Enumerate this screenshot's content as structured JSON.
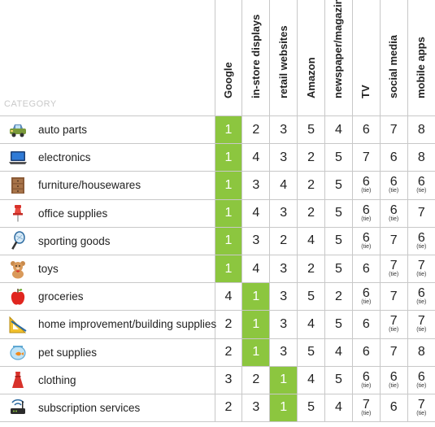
{
  "header": {
    "category_label": "CATEGORY",
    "columns": [
      "Google",
      "in-store displays",
      "retail websites",
      "Amazon",
      "newspaper/magazine",
      "TV",
      "social media",
      "mobile apps"
    ]
  },
  "colors": {
    "highlight": "#8cc63f",
    "grid": "#c8c8c8"
  },
  "rows": [
    {
      "name": "auto parts",
      "icon": "car-icon",
      "cells": [
        {
          "v": "1",
          "hl": true
        },
        {
          "v": "2"
        },
        {
          "v": "3"
        },
        {
          "v": "5"
        },
        {
          "v": "4"
        },
        {
          "v": "6"
        },
        {
          "v": "7"
        },
        {
          "v": "8"
        }
      ]
    },
    {
      "name": "electronics",
      "icon": "laptop-icon",
      "cells": [
        {
          "v": "1",
          "hl": true
        },
        {
          "v": "4"
        },
        {
          "v": "3"
        },
        {
          "v": "2"
        },
        {
          "v": "5"
        },
        {
          "v": "7"
        },
        {
          "v": "6"
        },
        {
          "v": "8"
        }
      ]
    },
    {
      "name": "furniture/housewares",
      "icon": "dresser-icon",
      "cells": [
        {
          "v": "1",
          "hl": true
        },
        {
          "v": "3"
        },
        {
          "v": "4"
        },
        {
          "v": "2"
        },
        {
          "v": "5"
        },
        {
          "v": "6",
          "tie": "(tie)"
        },
        {
          "v": "6",
          "tie": "(tie)"
        },
        {
          "v": "6",
          "tie": "(tie)"
        }
      ]
    },
    {
      "name": "office supplies",
      "icon": "pushpin-icon",
      "cells": [
        {
          "v": "1",
          "hl": true
        },
        {
          "v": "4"
        },
        {
          "v": "3"
        },
        {
          "v": "2"
        },
        {
          "v": "5"
        },
        {
          "v": "6",
          "tie": "(tie)"
        },
        {
          "v": "6",
          "tie": "(tie)"
        },
        {
          "v": "7"
        }
      ]
    },
    {
      "name": "sporting goods",
      "icon": "racket-icon",
      "cells": [
        {
          "v": "1",
          "hl": true
        },
        {
          "v": "3"
        },
        {
          "v": "2"
        },
        {
          "v": "4"
        },
        {
          "v": "5"
        },
        {
          "v": "6",
          "tie": "(tie)"
        },
        {
          "v": "7"
        },
        {
          "v": "6",
          "tie": "(tie)"
        }
      ]
    },
    {
      "name": "toys",
      "icon": "teddy-bear-icon",
      "cells": [
        {
          "v": "1",
          "hl": true
        },
        {
          "v": "4"
        },
        {
          "v": "3"
        },
        {
          "v": "2"
        },
        {
          "v": "5"
        },
        {
          "v": "6"
        },
        {
          "v": "7",
          "tie": "(tie)"
        },
        {
          "v": "7",
          "tie": "(tie)"
        }
      ]
    },
    {
      "name": "groceries",
      "icon": "apple-icon",
      "cells": [
        {
          "v": "4"
        },
        {
          "v": "1",
          "hl": true
        },
        {
          "v": "3"
        },
        {
          "v": "5"
        },
        {
          "v": "2"
        },
        {
          "v": "6",
          "tie": "(tie)"
        },
        {
          "v": "7"
        },
        {
          "v": "6",
          "tie": "(tie)"
        }
      ]
    },
    {
      "name": "home improvement/building supplies",
      "icon": "set-square-icon",
      "cells": [
        {
          "v": "2"
        },
        {
          "v": "1",
          "hl": true
        },
        {
          "v": "3"
        },
        {
          "v": "4"
        },
        {
          "v": "5"
        },
        {
          "v": "6"
        },
        {
          "v": "7",
          "tie": "(tie)"
        },
        {
          "v": "7",
          "tie": "(tie)"
        }
      ]
    },
    {
      "name": "pet supplies",
      "icon": "fishbowl-icon",
      "cells": [
        {
          "v": "2"
        },
        {
          "v": "1",
          "hl": true
        },
        {
          "v": "3"
        },
        {
          "v": "5"
        },
        {
          "v": "4"
        },
        {
          "v": "6"
        },
        {
          "v": "7"
        },
        {
          "v": "8"
        }
      ]
    },
    {
      "name": "clothing",
      "icon": "dress-icon",
      "cells": [
        {
          "v": "3"
        },
        {
          "v": "2"
        },
        {
          "v": "1",
          "hl": true
        },
        {
          "v": "4"
        },
        {
          "v": "5"
        },
        {
          "v": "6",
          "tie": "(tie)"
        },
        {
          "v": "6",
          "tie": "(tie)"
        },
        {
          "v": "6",
          "tie": "(tie)"
        }
      ]
    },
    {
      "name": "subscription services",
      "icon": "router-icon",
      "cells": [
        {
          "v": "2"
        },
        {
          "v": "3"
        },
        {
          "v": "1",
          "hl": true
        },
        {
          "v": "5"
        },
        {
          "v": "4"
        },
        {
          "v": "7",
          "tie": "(tie)"
        },
        {
          "v": "6"
        },
        {
          "v": "7",
          "tie": "(tie)"
        }
      ]
    }
  ]
}
